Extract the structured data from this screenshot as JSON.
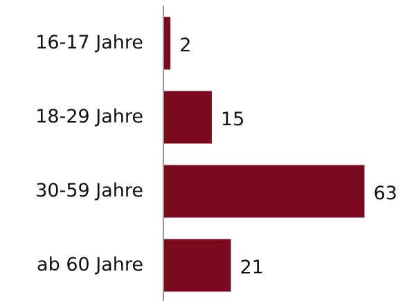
{
  "chart_data": {
    "type": "bar",
    "orientation": "horizontal",
    "categories": [
      "16-17 Jahre",
      "18-29 Jahre",
      "30-59 Jahre",
      "ab 60 Jahre"
    ],
    "values": [
      2,
      15,
      63,
      21
    ],
    "color": "#7b0a1e",
    "xlim": [
      0,
      74
    ]
  }
}
